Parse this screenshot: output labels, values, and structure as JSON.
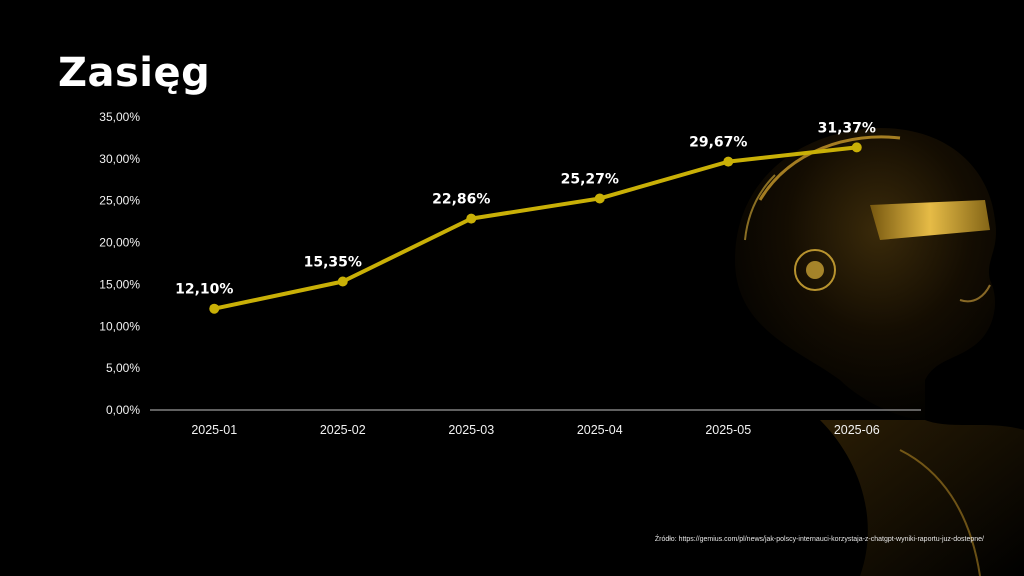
{
  "slide": {
    "title": "Zasięg",
    "source": "Źródło: https://gemius.com/pl/news/jak-polscy-internauci-korzystaja-z-chatgpt-wyniki-raportu-juz-dostepne/"
  },
  "colors": {
    "background": "#000000",
    "line": "#c9b007",
    "text": "#ffffff",
    "axis": "#bfbfbf",
    "accent_gold": "#e0b43a"
  },
  "chart_data": {
    "type": "line",
    "title": "",
    "xlabel": "",
    "ylabel": "",
    "categories": [
      "2025-01",
      "2025-02",
      "2025-03",
      "2025-04",
      "2025-05",
      "2025-06"
    ],
    "values": [
      12.1,
      15.35,
      22.86,
      25.27,
      29.67,
      31.37
    ],
    "data_labels": [
      "12,10%",
      "15,35%",
      "22,86%",
      "25,27%",
      "29,67%",
      "31,37%"
    ],
    "y_ticks": [
      0,
      5,
      10,
      15,
      20,
      25,
      30,
      35
    ],
    "y_tick_labels": [
      "0,00%",
      "5,00%",
      "10,00%",
      "15,00%",
      "20,00%",
      "25,00%",
      "30,00%",
      "35,00%"
    ],
    "ylim": [
      0,
      35
    ],
    "grid": false,
    "legend": "none"
  }
}
